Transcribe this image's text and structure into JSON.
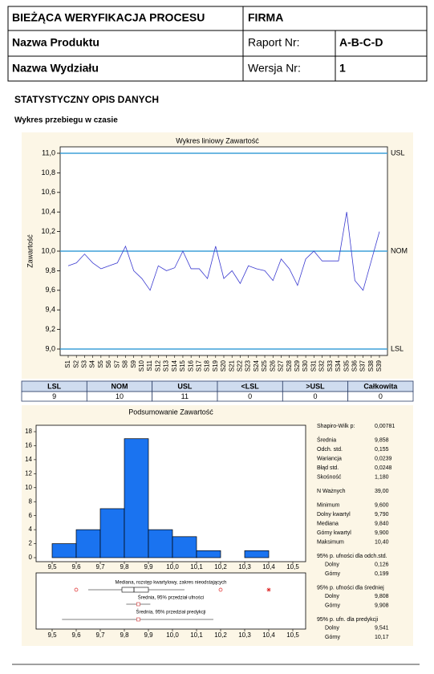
{
  "header": {
    "title": "BIEŻĄCA WERYFIKACJA PROCESU",
    "company": "FIRMA",
    "product_label": "Nazwa Produktu",
    "report_label": "Raport Nr:",
    "report_value": "A-B-C-D",
    "department_label": "Nazwa Wydziału",
    "version_label": "Wersja Nr:",
    "version_value": "1"
  },
  "section": {
    "title": "STATYSTYCZNY OPIS DANYCH",
    "subtitle": "Wykres przebiegu w czasie"
  },
  "line_chart": {
    "type": "line",
    "title": "Wykres liniowy Zawartość",
    "y_label": "Zawartość",
    "color": "#3b3bd0",
    "categories": [
      "S1",
      "S2",
      "S3",
      "S4",
      "S5",
      "S6",
      "S7",
      "S8",
      "S9",
      "S10",
      "S11",
      "S12",
      "S13",
      "S14",
      "S15",
      "S16",
      "S17",
      "S18",
      "S19",
      "S20",
      "S21",
      "S22",
      "S23",
      "S24",
      "S25",
      "S26",
      "S27",
      "S28",
      "S29",
      "S30",
      "S31",
      "S32",
      "S33",
      "S34",
      "S35",
      "S36",
      "S37",
      "S38",
      "S39"
    ],
    "values": [
      9.85,
      9.88,
      9.97,
      9.88,
      9.82,
      9.85,
      9.88,
      10.05,
      9.8,
      9.72,
      9.6,
      9.85,
      9.8,
      9.83,
      10.0,
      9.82,
      9.82,
      9.72,
      10.05,
      9.72,
      9.8,
      9.67,
      9.85,
      9.82,
      9.8,
      9.7,
      9.92,
      9.82,
      9.65,
      9.92,
      10.0,
      9.9,
      9.9,
      9.9,
      10.4,
      9.7,
      9.6,
      9.9,
      10.2
    ],
    "ylim": [
      9.0,
      11.0
    ],
    "yticks": [
      {
        "value": 9.0,
        "label": "9,0"
      },
      {
        "value": 9.2,
        "label": "9,2"
      },
      {
        "value": 9.4,
        "label": "9,4"
      },
      {
        "value": 9.6,
        "label": "9,6"
      },
      {
        "value": 9.8,
        "label": "9,8"
      },
      {
        "value": 10.0,
        "label": "10,0"
      },
      {
        "value": 10.2,
        "label": "10,2"
      },
      {
        "value": 10.4,
        "label": "10,4"
      },
      {
        "value": 10.6,
        "label": "10,6"
      },
      {
        "value": 10.8,
        "label": "10,8"
      },
      {
        "value": 11.0,
        "label": "11,0"
      }
    ],
    "ref_lines": [
      {
        "label": "USL",
        "value": 11.0
      },
      {
        "label": "NOM",
        "value": 10.0
      },
      {
        "label": "LSL",
        "value": 9.0
      }
    ],
    "ref_color": "#3fa0d8"
  },
  "table": {
    "headers": [
      "LSL",
      "NOM",
      "USL",
      "<LSL",
      ">USL",
      "Całkowita"
    ],
    "values": [
      9,
      10,
      11,
      0,
      0,
      0
    ]
  },
  "histogram": {
    "type": "histogram",
    "title": "Podsumowanie Zawartość",
    "color": "#1a73f0",
    "bins": [
      9.5,
      9.6,
      9.7,
      9.8,
      9.9,
      10.0,
      10.1,
      10.2,
      10.3,
      10.4,
      10.5
    ],
    "counts": [
      2,
      4,
      7,
      17,
      4,
      3,
      1,
      0,
      1,
      0
    ],
    "xlim": [
      9.45,
      10.55
    ],
    "xticks": [
      {
        "value": 9.5,
        "label": "9,5"
      },
      {
        "value": 9.6,
        "label": "9,6"
      },
      {
        "value": 9.7,
        "label": "9,7"
      },
      {
        "value": 9.8,
        "label": "9,8"
      },
      {
        "value": 9.9,
        "label": "9,9"
      },
      {
        "value": 10.0,
        "label": "10,0"
      },
      {
        "value": 10.1,
        "label": "10,1"
      },
      {
        "value": 10.2,
        "label": "10,2"
      },
      {
        "value": 10.3,
        "label": "10,3"
      },
      {
        "value": 10.4,
        "label": "10,4"
      },
      {
        "value": 10.5,
        "label": "10,5"
      }
    ],
    "ylim": [
      0,
      18.5
    ],
    "yticks": [
      0,
      2,
      4,
      6,
      8,
      10,
      12,
      14,
      16,
      18
    ]
  },
  "boxplot": {
    "type": "box",
    "labels": [
      "Mediana, rozstęp kwartylowy, zakres nieodstających",
      "Średnia, 95% przedział ufności",
      "Średnia, 95% przedział predykcji"
    ],
    "whisker_low": 9.65,
    "q1": 9.79,
    "median": 9.84,
    "q3": 9.9,
    "whisker_high": 10.05,
    "outliers": [
      9.6,
      10.2
    ],
    "extremes": [
      10.4
    ],
    "mean": 9.858,
    "ci": [
      9.808,
      9.908
    ],
    "pi": [
      9.541,
      10.17
    ]
  },
  "stats": [
    {
      "rows": [
        [
          "Shapiro-Wilk p:",
          "0,00781"
        ]
      ]
    },
    {
      "rows": [
        [
          "Średnia",
          "9,858"
        ],
        [
          "Odch. std.",
          "0,155"
        ],
        [
          "Wariancja",
          "0,0239"
        ],
        [
          "Błąd std.",
          "0,0248"
        ],
        [
          "Skośność",
          "1,180"
        ]
      ]
    },
    {
      "rows": [
        [
          "N Ważnych",
          "39,00"
        ]
      ]
    },
    {
      "rows": [
        [
          "Minimum",
          "9,600"
        ],
        [
          "Dolny kwartyl",
          "9,790"
        ],
        [
          "Mediana",
          "9,840"
        ],
        [
          "Górny kwartyl",
          "9,900"
        ],
        [
          "Maksimum",
          "10,40"
        ]
      ]
    },
    {
      "heading": "95% p. ufności dla odch.std.",
      "rows": [
        [
          "Dolny",
          "0,126"
        ],
        [
          "Górny",
          "0,199"
        ]
      ]
    },
    {
      "heading": "95% p. ufności dla średniej",
      "rows": [
        [
          "Dolny",
          "9,808"
        ],
        [
          "Górny",
          "9,908"
        ]
      ]
    },
    {
      "heading": "95% p. ufn. dla predykcji",
      "rows": [
        [
          "Dolny",
          "9,541"
        ],
        [
          "Górny",
          "10,17"
        ]
      ]
    }
  ]
}
